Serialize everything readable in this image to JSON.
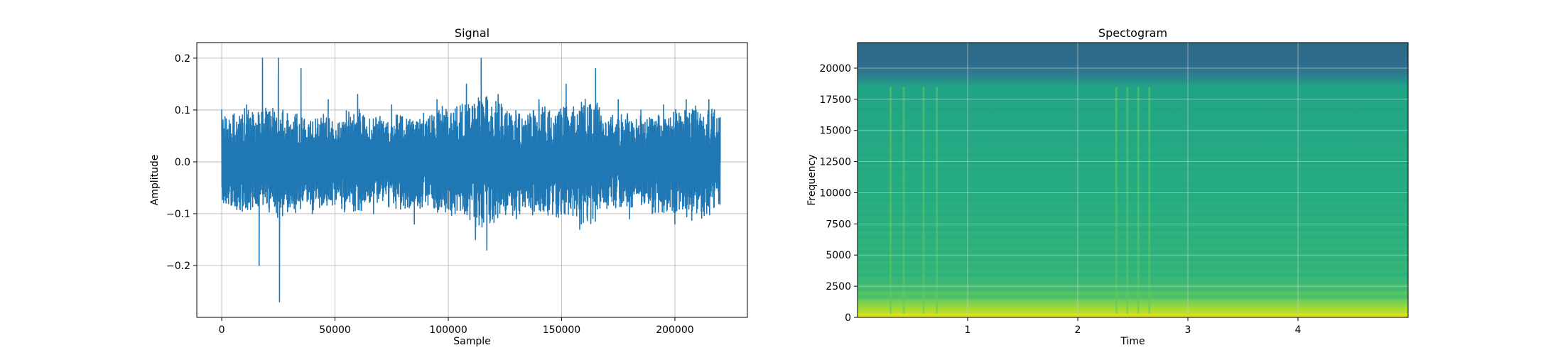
{
  "chart_data": [
    {
      "type": "line",
      "title": "Signal",
      "xlabel": "Sample",
      "ylabel": "Amplitude",
      "xlim": [
        -11000,
        232000
      ],
      "ylim": [
        -0.3,
        0.23
      ],
      "grid": true,
      "line_color": "#1f77b4",
      "x_ticks": [
        0,
        50000,
        100000,
        150000,
        200000
      ],
      "x_tick_labels": [
        "0",
        "50000",
        "100000",
        "150000",
        "200000"
      ],
      "y_ticks": [
        -0.2,
        -0.1,
        0.0,
        0.1,
        0.2
      ],
      "y_tick_labels": [
        "−0.2",
        "−0.1",
        "0.0",
        "0.1",
        "0.2"
      ],
      "series": [
        {
          "x": [
            0,
            2000,
            5000,
            8000,
            11000,
            15000,
            16500,
            18000,
            20000,
            25000,
            25500,
            27000,
            31000,
            35000,
            40000,
            47000,
            53000,
            60000,
            67000,
            75000,
            85000,
            95000,
            103000,
            108000,
            112000,
            114500,
            117000,
            122000,
            130000,
            140000,
            148000,
            152000,
            158000,
            165000,
            170000,
            175000,
            180000,
            185000,
            190000,
            195000,
            200000,
            205000,
            210000,
            215000,
            220000
          ],
          "y": [
            0.1,
            -0.06,
            0.09,
            -0.09,
            0.11,
            -0.08,
            -0.2,
            0.2,
            -0.07,
            0.2,
            -0.27,
            0.1,
            -0.08,
            0.18,
            -0.1,
            0.12,
            -0.09,
            0.13,
            -0.1,
            0.11,
            -0.12,
            0.12,
            -0.1,
            0.15,
            -0.15,
            0.2,
            -0.17,
            0.13,
            -0.11,
            0.12,
            -0.1,
            0.15,
            -0.13,
            0.18,
            -0.09,
            0.12,
            -0.11,
            0.1,
            -0.1,
            0.11,
            -0.12,
            0.12,
            -0.09,
            0.12,
            0.0
          ],
          "amplitude_envelope": [
            [
              0,
              0.09
            ],
            [
              5000,
              0.09
            ],
            [
              10000,
              0.1
            ],
            [
              15000,
              0.09
            ],
            [
              20000,
              0.1
            ],
            [
              25000,
              0.11
            ],
            [
              30000,
              0.1
            ],
            [
              35000,
              0.09
            ],
            [
              40000,
              0.09
            ],
            [
              45000,
              0.09
            ],
            [
              50000,
              0.08
            ],
            [
              55000,
              0.09
            ],
            [
              60000,
              0.1
            ],
            [
              65000,
              0.09
            ],
            [
              70000,
              0.08
            ],
            [
              75000,
              0.08
            ],
            [
              80000,
              0.09
            ],
            [
              85000,
              0.09
            ],
            [
              90000,
              0.09
            ],
            [
              95000,
              0.1
            ],
            [
              100000,
              0.1
            ],
            [
              105000,
              0.11
            ],
            [
              110000,
              0.12
            ],
            [
              115000,
              0.13
            ],
            [
              120000,
              0.12
            ],
            [
              125000,
              0.1
            ],
            [
              130000,
              0.1
            ],
            [
              135000,
              0.09
            ],
            [
              140000,
              0.1
            ],
            [
              145000,
              0.1
            ],
            [
              150000,
              0.11
            ],
            [
              155000,
              0.1
            ],
            [
              160000,
              0.12
            ],
            [
              165000,
              0.11
            ],
            [
              170000,
              0.09
            ],
            [
              175000,
              0.09
            ],
            [
              180000,
              0.09
            ],
            [
              185000,
              0.09
            ],
            [
              190000,
              0.09
            ],
            [
              195000,
              0.1
            ],
            [
              200000,
              0.1
            ],
            [
              205000,
              0.11
            ],
            [
              210000,
              0.1
            ],
            [
              215000,
              0.1
            ],
            [
              220000,
              0.09
            ]
          ]
        }
      ]
    },
    {
      "type": "heatmap",
      "title": "Spectogram",
      "xlabel": "Time",
      "ylabel": "Frequency",
      "xlim": [
        0,
        5.0
      ],
      "ylim": [
        0,
        22050
      ],
      "grid": true,
      "colormap": "viridis",
      "x_ticks": [
        1,
        2,
        3,
        4
      ],
      "x_tick_labels": [
        "1",
        "2",
        "3",
        "4"
      ],
      "y_ticks": [
        0,
        2500,
        5000,
        7500,
        10000,
        12500,
        15000,
        17500,
        20000
      ],
      "y_tick_labels": [
        "0",
        "2500",
        "5000",
        "7500",
        "10000",
        "12500",
        "15000",
        "17500",
        "20000"
      ],
      "colors": {
        "top_band": "#2c6a86",
        "body": "#24a083",
        "low_band": "#6ccf5c",
        "bottom_band": "#cde11d"
      },
      "frequency_bands": [
        {
          "from": 18500,
          "to": 22050,
          "level": "low"
        },
        {
          "from": 1500,
          "to": 18500,
          "level": "medium"
        },
        {
          "from": 300,
          "to": 1500,
          "level": "high"
        },
        {
          "from": 0,
          "to": 300,
          "level": "highest"
        }
      ],
      "event_times": [
        0.3,
        0.42,
        0.6,
        0.72,
        2.35,
        2.45,
        2.55,
        2.65
      ]
    }
  ]
}
